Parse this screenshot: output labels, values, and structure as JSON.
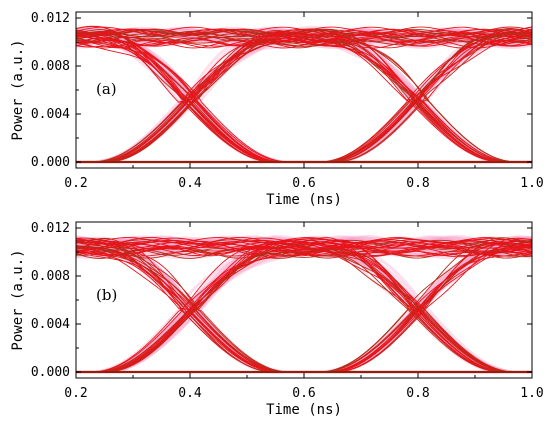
{
  "chart_data": [
    {
      "type": "line",
      "panel_label": "(a)",
      "xlabel": "Time (ns)",
      "ylabel": "Power (a.u.)",
      "xlim": [
        0.2,
        1.0
      ],
      "ylim": [
        -0.0005,
        0.0125
      ],
      "xticks": [
        "0.2",
        "0.4",
        "0.6",
        "0.8",
        "1.0"
      ],
      "yticks": [
        "0.000",
        "0.004",
        "0.008",
        "0.012"
      ],
      "grid": false,
      "legend": "none",
      "line_color": "#e8141b",
      "zero_line_color": "#8b2500",
      "high_level": 0.0105,
      "low_level": 0.0,
      "crossing_level": 0.0053,
      "crossings_x": [
        0.4,
        0.8
      ]
    },
    {
      "type": "line",
      "panel_label": "(b)",
      "xlabel": "Time (ns)",
      "ylabel": "Power (a.u.)",
      "xlim": [
        0.2,
        1.0
      ],
      "ylim": [
        -0.0005,
        0.0125
      ],
      "xticks": [
        "0.2",
        "0.4",
        "0.6",
        "0.8",
        "1.0"
      ],
      "yticks": [
        "0.000",
        "0.004",
        "0.008",
        "0.012"
      ],
      "grid": false,
      "legend": "none",
      "line_color": "#e8141b",
      "zero_line_color": "#8b2500",
      "high_level": 0.0105,
      "low_level": 0.0,
      "crossing_level": 0.0053,
      "crossings_x": [
        0.4,
        0.8
      ]
    }
  ]
}
